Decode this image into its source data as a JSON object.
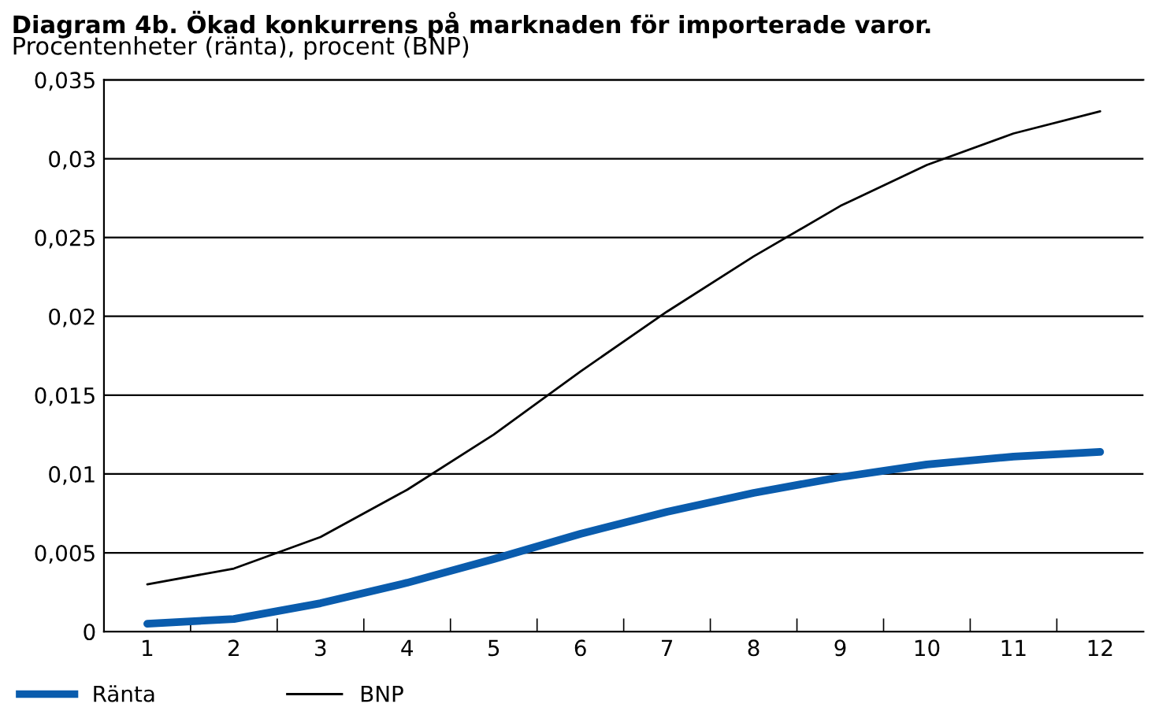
{
  "chart_data": {
    "type": "line",
    "title": "Diagram 4b. Ökad konkurrens på marknaden för importerade varor.",
    "subtitle": "Procentenheter (ränta), procent (BNP)",
    "categories": [
      "1",
      "2",
      "3",
      "4",
      "5",
      "6",
      "7",
      "8",
      "9",
      "10",
      "11",
      "12"
    ],
    "series": [
      {
        "name": "Ränta",
        "color": "#0a5cad",
        "values": [
          0.0005,
          0.0008,
          0.0018,
          0.0031,
          0.0046,
          0.0062,
          0.0076,
          0.0088,
          0.0098,
          0.0106,
          0.0111,
          0.0114
        ]
      },
      {
        "name": "BNP",
        "color": "#000000",
        "values": [
          0.003,
          0.004,
          0.006,
          0.009,
          0.0125,
          0.0165,
          0.0203,
          0.0238,
          0.027,
          0.0296,
          0.0316,
          0.033
        ]
      }
    ],
    "ylim": [
      0,
      0.035
    ],
    "yticks": [
      {
        "value": 0,
        "label": "0"
      },
      {
        "value": 0.005,
        "label": "0,005"
      },
      {
        "value": 0.01,
        "label": "0,01"
      },
      {
        "value": 0.015,
        "label": "0,015"
      },
      {
        "value": 0.02,
        "label": "0,02"
      },
      {
        "value": 0.025,
        "label": "0,025"
      },
      {
        "value": 0.03,
        "label": "0,03"
      },
      {
        "value": 0.035,
        "label": "0,035"
      }
    ],
    "grid": "y",
    "legend": "bottom left",
    "marker": "none",
    "line_style": "solid"
  }
}
